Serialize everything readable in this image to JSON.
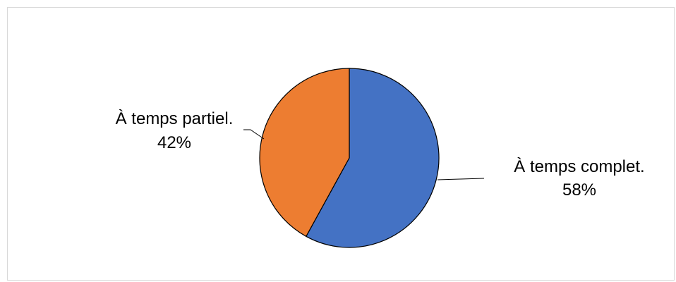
{
  "chart_data": {
    "type": "pie",
    "title": "",
    "slices": [
      {
        "label": "À temps complet.",
        "value": 58,
        "display": "58%",
        "color": "#4472C4"
      },
      {
        "label": "À temps partiel.",
        "value": 42,
        "display": "42%",
        "color": "#ED7D31"
      }
    ],
    "start_angle": "12 o'clock",
    "direction": "clockwise",
    "legend": "none",
    "data_labels": "outside with leader lines"
  }
}
